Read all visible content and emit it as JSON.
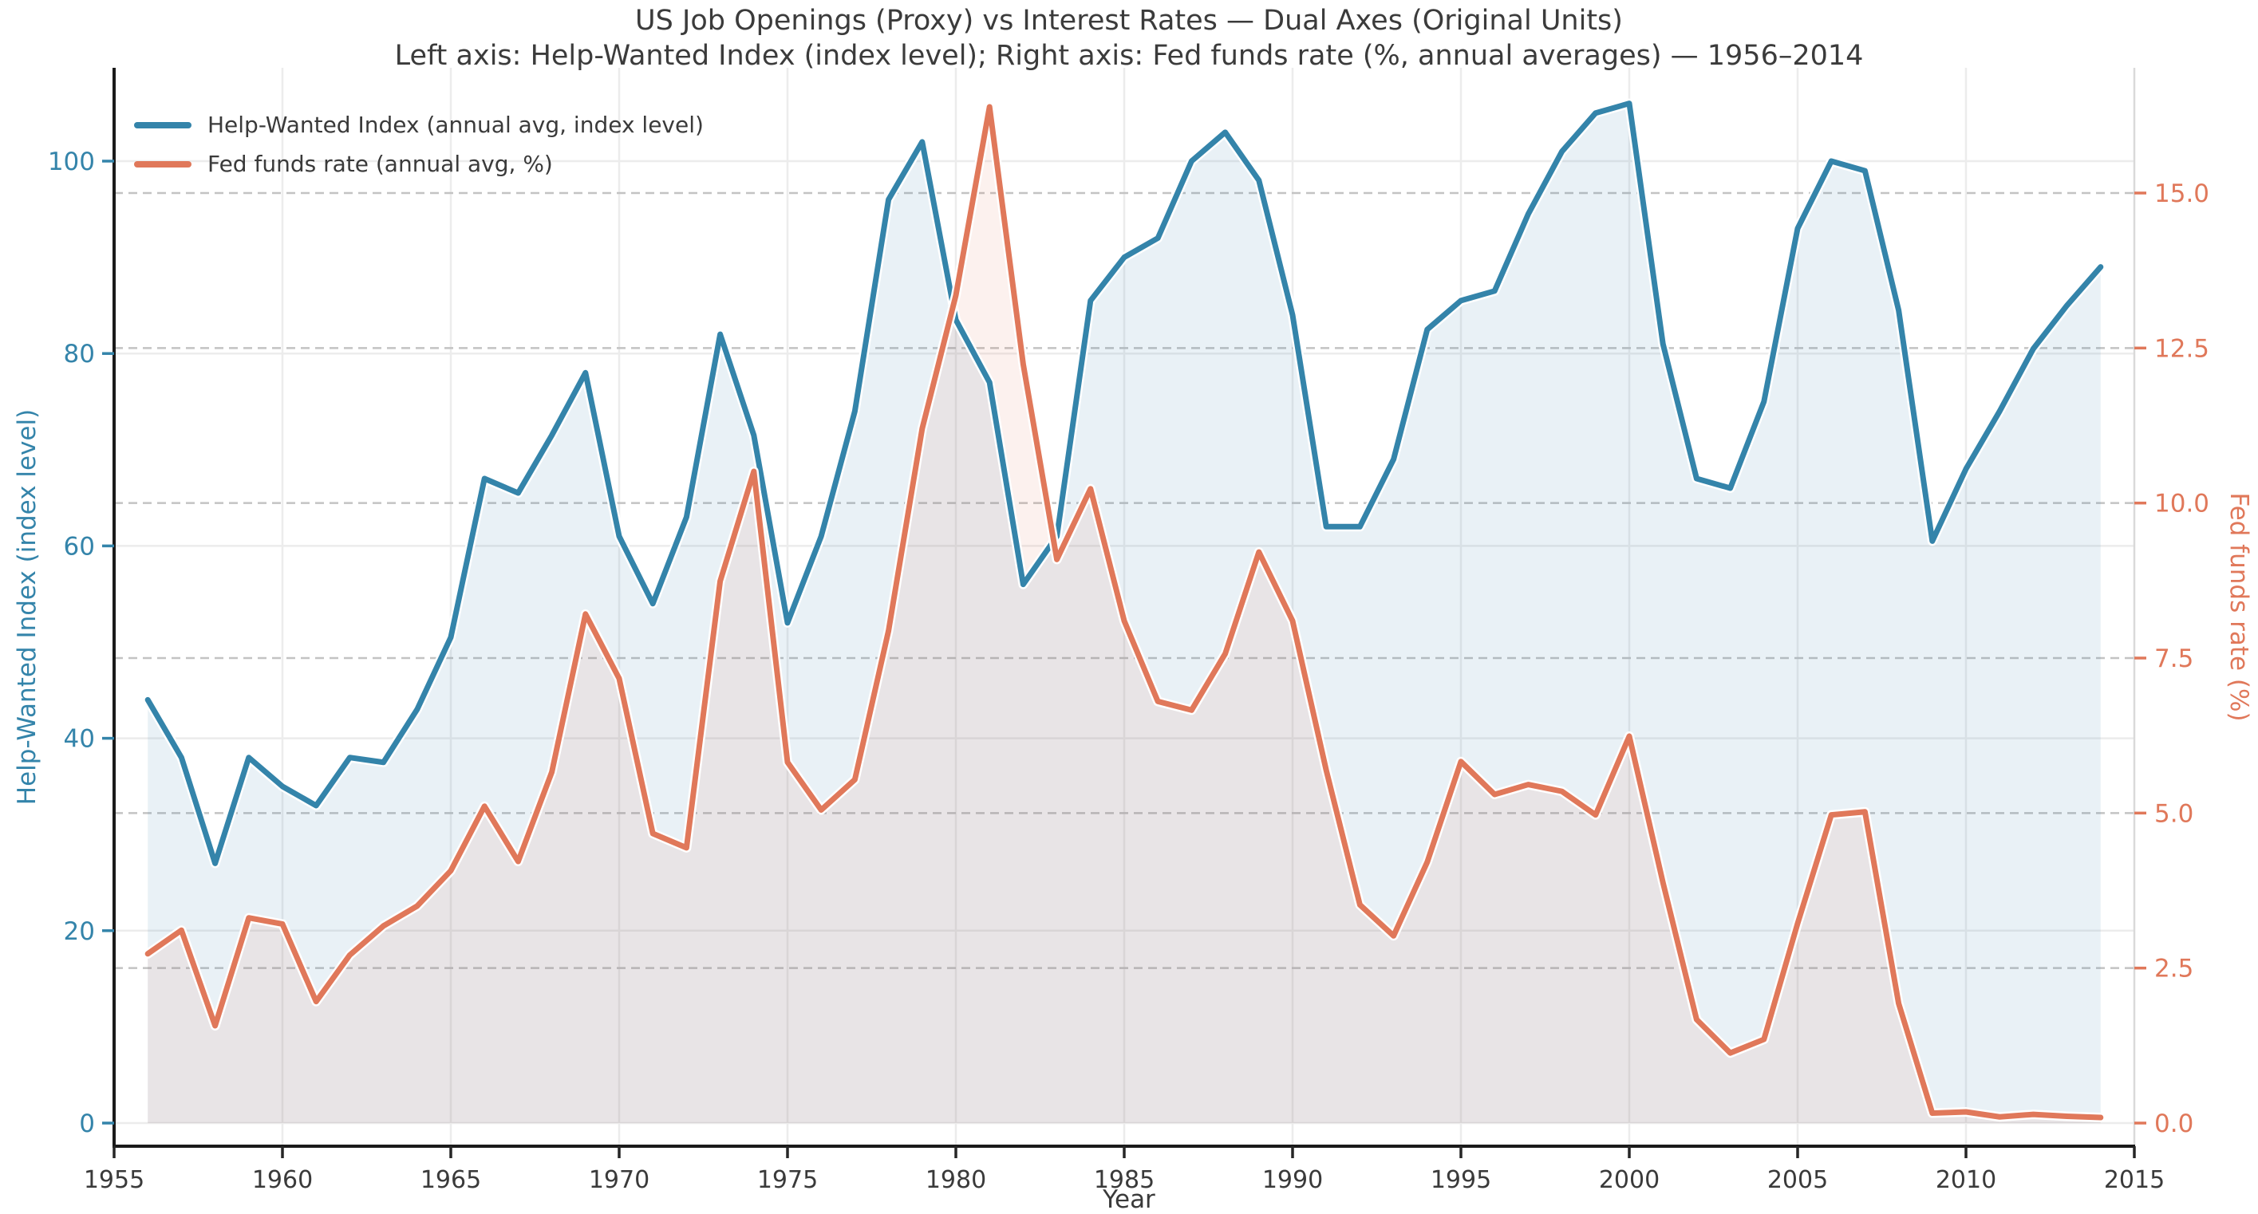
{
  "title": "US Job Openings (Proxy) vs Interest Rates — Dual Axes (Original Units)",
  "subtitle": "Left axis: Help-Wanted Index (index level); Right axis: Fed funds rate (%, annual averages) — 1956–2014",
  "legend": {
    "position": "upper-left",
    "items": [
      {
        "label": "Help-Wanted Index (annual avg, index level)",
        "color": "#3484aa"
      },
      {
        "label": "Fed funds rate (annual avg, %)",
        "color": "#e0785a"
      }
    ]
  },
  "axes": {
    "x": {
      "label": "Year",
      "ticks": [
        1955,
        1960,
        1965,
        1970,
        1975,
        1980,
        1985,
        1990,
        1995,
        2000,
        2005,
        2010,
        2015
      ],
      "range": [
        1955,
        2015
      ]
    },
    "left": {
      "label": "Help-Wanted Index (index level)",
      "color": "#3484aa",
      "ticks": [
        0,
        20,
        40,
        60,
        80,
        100
      ]
    },
    "right": {
      "label": "Fed funds rate (%)",
      "color": "#e0785a",
      "tick_labels": [
        "0.0",
        "2.5",
        "5.0",
        "7.5",
        "10.0",
        "12.5",
        "15.0"
      ],
      "ticks": [
        0,
        2.5,
        5,
        7.5,
        10,
        12.5,
        15
      ]
    }
  },
  "chart_data": {
    "type": "line",
    "title": "US Job Openings (Proxy) vs Interest Rates — Dual Axes (Original Units)",
    "xlabel": "Year",
    "grid": {
      "x_gridlines": [
        1960,
        1965,
        1970,
        1975,
        1980,
        1985,
        1990,
        1995,
        2000,
        2005,
        2010
      ],
      "left_gridlines": [
        0,
        20,
        40,
        60,
        80,
        100
      ],
      "right_gridlines": [
        2.5,
        5,
        7.5,
        10,
        12.5,
        15
      ]
    },
    "x": [
      1956,
      1957,
      1958,
      1959,
      1960,
      1961,
      1962,
      1963,
      1964,
      1965,
      1966,
      1967,
      1968,
      1969,
      1970,
      1971,
      1972,
      1973,
      1974,
      1975,
      1976,
      1977,
      1978,
      1979,
      1980,
      1981,
      1982,
      1983,
      1984,
      1985,
      1986,
      1987,
      1988,
      1989,
      1990,
      1991,
      1992,
      1993,
      1994,
      1995,
      1996,
      1997,
      1998,
      1999,
      2000,
      2001,
      2002,
      2003,
      2004,
      2005,
      2006,
      2007,
      2008,
      2009,
      2010,
      2011,
      2012,
      2013,
      2014
    ],
    "series": [
      {
        "name": "Help-Wanted Index (annual avg, index level)",
        "axis": "left",
        "color": "#3484aa",
        "fill_color": "rgba(52,132,170,0.11)",
        "values": [
          44,
          38,
          27,
          38,
          35,
          33,
          38,
          37.5,
          43,
          50.5,
          67,
          65.5,
          71.5,
          78,
          61,
          54,
          63,
          82,
          71.5,
          52,
          61,
          74,
          96,
          102,
          83.5,
          77,
          56,
          61,
          85.5,
          90,
          92,
          100,
          103,
          98,
          84,
          62,
          62,
          69,
          82.5,
          85.5,
          86.5,
          94.5,
          101,
          105,
          106,
          81,
          67,
          66,
          75,
          93,
          100,
          99,
          84.5,
          60.5,
          68,
          74,
          80.5,
          85,
          89
        ]
      },
      {
        "name": "Fed funds rate (annual avg, %)",
        "axis": "right",
        "color": "#e0785a",
        "fill_color": "rgba(224,120,90,0.10)",
        "values": [
          2.73,
          3.11,
          1.57,
          3.31,
          3.21,
          1.96,
          2.71,
          3.18,
          3.5,
          4.07,
          5.11,
          4.22,
          5.66,
          8.21,
          7.17,
          4.67,
          4.44,
          8.74,
          10.51,
          5.82,
          5.05,
          5.54,
          7.94,
          11.2,
          13.35,
          16.39,
          12.24,
          9.09,
          10.23,
          8.1,
          6.8,
          6.66,
          7.57,
          9.21,
          8.1,
          5.69,
          3.52,
          3.02,
          4.21,
          5.83,
          5.3,
          5.46,
          5.35,
          4.97,
          6.24,
          3.88,
          1.67,
          1.13,
          1.35,
          3.22,
          4.97,
          5.02,
          1.93,
          0.16,
          0.18,
          0.1,
          0.14,
          0.11,
          0.09
        ]
      }
    ]
  }
}
